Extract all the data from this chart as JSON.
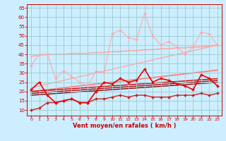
{
  "background_color": "#cceeff",
  "grid_color": "#99cccc",
  "xlabel": "Vent moyen/en rafales ( km/h )",
  "x_values": [
    0,
    1,
    2,
    3,
    4,
    5,
    6,
    7,
    8,
    9,
    10,
    11,
    12,
    13,
    14,
    15,
    16,
    17,
    18,
    19,
    20,
    21,
    22,
    23
  ],
  "ylim": [
    7,
    67
  ],
  "yticks": [
    10,
    15,
    20,
    25,
    30,
    35,
    40,
    45,
    50,
    55,
    60,
    65
  ],
  "series": [
    {
      "name": "upper_light_pink_jagged",
      "color": "#ffaaaa",
      "linewidth": 0.8,
      "marker": "D",
      "markersize": 2,
      "zorder": 2,
      "values": [
        34,
        40,
        40,
        27,
        31,
        28,
        25,
        23,
        31,
        30,
        51,
        53,
        49,
        48,
        62,
        50,
        45,
        47,
        44,
        40,
        44,
        52,
        51,
        45
      ]
    },
    {
      "name": "upper_trend_flat_light1",
      "color": "#ffaaaa",
      "linewidth": 1.3,
      "marker": null,
      "zorder": 1,
      "values": [
        39,
        39.5,
        40,
        40,
        40,
        40.5,
        40.5,
        40.5,
        41,
        41,
        41.5,
        41.5,
        42,
        42,
        42.5,
        42.5,
        43,
        43,
        43.5,
        43.5,
        44,
        44,
        44.5,
        45
      ]
    },
    {
      "name": "upper_trend_rising_light2",
      "color": "#ffaaaa",
      "linewidth": 1.0,
      "marker": null,
      "zorder": 1,
      "values": [
        22,
        23,
        24,
        25,
        26,
        27,
        28,
        29,
        30,
        31,
        32,
        33,
        34,
        35,
        36,
        37,
        38,
        39,
        40,
        41,
        42,
        43,
        44,
        45
      ]
    },
    {
      "name": "mid_trend_pink",
      "color": "#ff7777",
      "linewidth": 1.2,
      "marker": null,
      "zorder": 1,
      "values": [
        20,
        20.5,
        21,
        21.5,
        22,
        22.5,
        23,
        23.5,
        24,
        24.5,
        25,
        25.5,
        26,
        26.5,
        27,
        27.5,
        28,
        28.5,
        29,
        29.5,
        30,
        30.5,
        31,
        31.5
      ]
    },
    {
      "name": "main_red_jagged",
      "color": "#ee0000",
      "linewidth": 1.2,
      "marker": "D",
      "markersize": 2,
      "zorder": 3,
      "values": [
        21,
        25,
        18,
        14,
        15,
        16,
        14,
        14,
        20,
        25,
        24,
        27,
        25,
        26,
        32,
        25,
        27,
        26,
        24,
        23,
        21,
        29,
        27,
        23
      ]
    },
    {
      "name": "dark_trend1",
      "color": "#cc0000",
      "linewidth": 1.0,
      "marker": null,
      "zorder": 1,
      "values": [
        20,
        20.3,
        20.6,
        20.9,
        21.2,
        21.5,
        21.8,
        22.1,
        22.4,
        22.7,
        23.0,
        23.3,
        23.6,
        23.9,
        24.2,
        24.5,
        24.8,
        25.1,
        25.4,
        25.7,
        26.0,
        26.3,
        26.6,
        26.9
      ]
    },
    {
      "name": "dark_trend2",
      "color": "#aa0000",
      "linewidth": 1.0,
      "marker": null,
      "zorder": 1,
      "values": [
        19,
        19.3,
        19.6,
        19.9,
        20.2,
        20.5,
        20.8,
        21.1,
        21.4,
        21.7,
        22.0,
        22.3,
        22.6,
        22.9,
        23.2,
        23.5,
        23.8,
        24.1,
        24.4,
        24.7,
        25.0,
        25.3,
        25.6,
        25.9
      ]
    },
    {
      "name": "dark_trend3",
      "color": "#880000",
      "linewidth": 1.0,
      "marker": null,
      "zorder": 1,
      "values": [
        18,
        18.3,
        18.6,
        18.9,
        19.2,
        19.5,
        19.8,
        20.1,
        20.4,
        20.7,
        21.0,
        21.3,
        21.6,
        21.9,
        22.2,
        22.5,
        22.8,
        23.1,
        23.4,
        23.7,
        24.0,
        24.3,
        24.6,
        24.9
      ]
    },
    {
      "name": "lower_red_jagged",
      "color": "#cc2222",
      "linewidth": 1.0,
      "marker": "D",
      "markersize": 2,
      "zorder": 2,
      "values": [
        10,
        11,
        14,
        14,
        15,
        16,
        14,
        14,
        16,
        16,
        17,
        18,
        17,
        18,
        18,
        17,
        17,
        17,
        18,
        18,
        18,
        19,
        18,
        19
      ]
    }
  ]
}
